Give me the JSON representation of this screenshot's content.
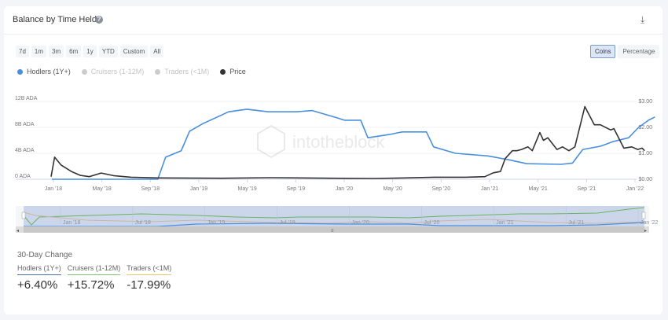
{
  "header": {
    "title": "Balance by Time Held",
    "help_icon": "question-circle-icon",
    "download_icon": "download-icon"
  },
  "ranges": [
    "7d",
    "1m",
    "3m",
    "6m",
    "1y",
    "YTD",
    "Custom",
    "All"
  ],
  "modes": {
    "items": [
      "Coins",
      "Percentage"
    ],
    "active": "Coins"
  },
  "legend": [
    {
      "label": "Hodlers (1Y+)",
      "color": "#4a8fdc",
      "active": true
    },
    {
      "label": "Cruisers (1-12M)",
      "color": "#c8c8c8",
      "active": false
    },
    {
      "label": "Traders (<1M)",
      "color": "#c8c8c8",
      "active": false
    },
    {
      "label": "Price",
      "color": "#333333",
      "active": true
    }
  ],
  "watermark": "intotheblock",
  "chart_data": {
    "type": "line",
    "title": "",
    "x_ticks": [
      "Jan '18",
      "May '18",
      "Sep '18",
      "Jan '19",
      "May '19",
      "Sep '19",
      "Jan '20",
      "May '20",
      "Sep '20",
      "Jan '21",
      "May '21",
      "Sep '21",
      "Jan '22"
    ],
    "y_left": {
      "ticks": [
        "0 ADA",
        "4B ADA",
        "8B ADA",
        "12B ADA"
      ],
      "range": [
        0,
        12
      ],
      "unit": "B ADA"
    },
    "y_right": {
      "ticks": [
        "$0.00",
        "$1.00",
        "$2.00",
        "$3.00"
      ],
      "range": [
        0,
        3
      ]
    },
    "grid": true,
    "legend_position": "top-left",
    "series": [
      {
        "name": "Hodlers (1Y+)",
        "axis": "left",
        "color": "#4a8fdc",
        "points": [
          [
            "2017-12-28",
            0
          ],
          [
            "2018-09-20",
            0
          ],
          [
            "2018-10-10",
            3.4
          ],
          [
            "2018-11-18",
            4.4
          ],
          [
            "2018-12-09",
            7.4
          ],
          [
            "2019-01-12",
            8.6
          ],
          [
            "2019-03-17",
            10.4
          ],
          [
            "2019-05-02",
            10.8
          ],
          [
            "2019-06-25",
            10.4
          ],
          [
            "2019-09-03",
            10.4
          ],
          [
            "2019-10-13",
            10.6
          ],
          [
            "2019-12-13",
            9.5
          ],
          [
            "2020-01-02",
            9.1
          ],
          [
            "2020-02-12",
            9.1
          ],
          [
            "2020-03-01",
            6.4
          ],
          [
            "2020-04-24",
            6.9
          ],
          [
            "2020-05-26",
            7.3
          ],
          [
            "2020-07-26",
            7.3
          ],
          [
            "2020-08-13",
            5.0
          ],
          [
            "2020-10-07",
            4.0
          ],
          [
            "2020-12-27",
            3.6
          ],
          [
            "2021-02-19",
            3.0
          ],
          [
            "2021-04-04",
            2.4
          ],
          [
            "2021-06-30",
            2.3
          ],
          [
            "2021-07-28",
            2.5
          ],
          [
            "2021-08-23",
            4.6
          ],
          [
            "2021-10-07",
            5.1
          ],
          [
            "2021-11-06",
            5.8
          ],
          [
            "2021-12-16",
            6.4
          ],
          [
            "2022-01-10",
            8.0
          ],
          [
            "2022-02-04",
            9.1
          ],
          [
            "2022-02-20",
            9.6
          ]
        ]
      },
      {
        "name": "Price",
        "axis": "right",
        "color": "#333333",
        "points": [
          [
            "2017-12-26",
            0.1
          ],
          [
            "2018-01-04",
            0.85
          ],
          [
            "2018-01-20",
            0.55
          ],
          [
            "2018-02-15",
            0.3
          ],
          [
            "2018-03-10",
            0.15
          ],
          [
            "2018-04-01",
            0.1
          ],
          [
            "2018-05-01",
            0.24
          ],
          [
            "2018-06-01",
            0.14
          ],
          [
            "2018-07-15",
            0.08
          ],
          [
            "2018-09-20",
            0.05
          ],
          [
            "2019-03-01",
            0.04
          ],
          [
            "2019-07-01",
            0.06
          ],
          [
            "2019-12-01",
            0.04
          ],
          [
            "2020-03-15",
            0.03
          ],
          [
            "2020-06-01",
            0.05
          ],
          [
            "2020-08-15",
            0.08
          ],
          [
            "2020-11-01",
            0.08
          ],
          [
            "2020-12-20",
            0.1
          ],
          [
            "2021-01-10",
            0.25
          ],
          [
            "2021-01-28",
            0.3
          ],
          [
            "2021-02-09",
            0.8
          ],
          [
            "2021-02-27",
            1.1
          ],
          [
            "2021-03-10",
            1.1
          ],
          [
            "2021-03-22",
            1.15
          ],
          [
            "2021-04-07",
            1.25
          ],
          [
            "2021-04-18",
            1.1
          ],
          [
            "2021-05-07",
            1.8
          ],
          [
            "2021-05-16",
            1.5
          ],
          [
            "2021-05-27",
            1.6
          ],
          [
            "2021-06-19",
            1.15
          ],
          [
            "2021-07-03",
            1.25
          ],
          [
            "2021-07-19",
            1.1
          ],
          [
            "2021-08-03",
            1.25
          ],
          [
            "2021-08-28",
            2.8
          ],
          [
            "2021-09-21",
            2.1
          ],
          [
            "2021-10-06",
            2.1
          ],
          [
            "2021-11-01",
            1.9
          ],
          [
            "2021-11-09",
            1.95
          ],
          [
            "2021-12-04",
            1.2
          ],
          [
            "2021-12-24",
            1.25
          ],
          [
            "2022-01-08",
            1.15
          ],
          [
            "2022-01-19",
            1.2
          ],
          [
            "2022-01-25",
            1.1
          ]
        ]
      }
    ]
  },
  "navigator": {
    "labels": [
      "Jan '18",
      "Jul '18",
      "Jan '19",
      "Jul '19",
      "Jan '20",
      "Jul '20",
      "Jan '21",
      "Jul '21",
      "Jan '22"
    ],
    "handle_icon": "grip-icon"
  },
  "change": {
    "title": "30-Day Change",
    "items": [
      {
        "label": "Hodlers (1Y+)",
        "value": "+6.40%",
        "color": "#4a6fa5"
      },
      {
        "label": "Cruisers (1-12M)",
        "value": "+15.72%",
        "color": "#7bbf6a"
      },
      {
        "label": "Traders (<1M)",
        "value": "-17.99%",
        "color": "#e8c46a"
      }
    ]
  }
}
